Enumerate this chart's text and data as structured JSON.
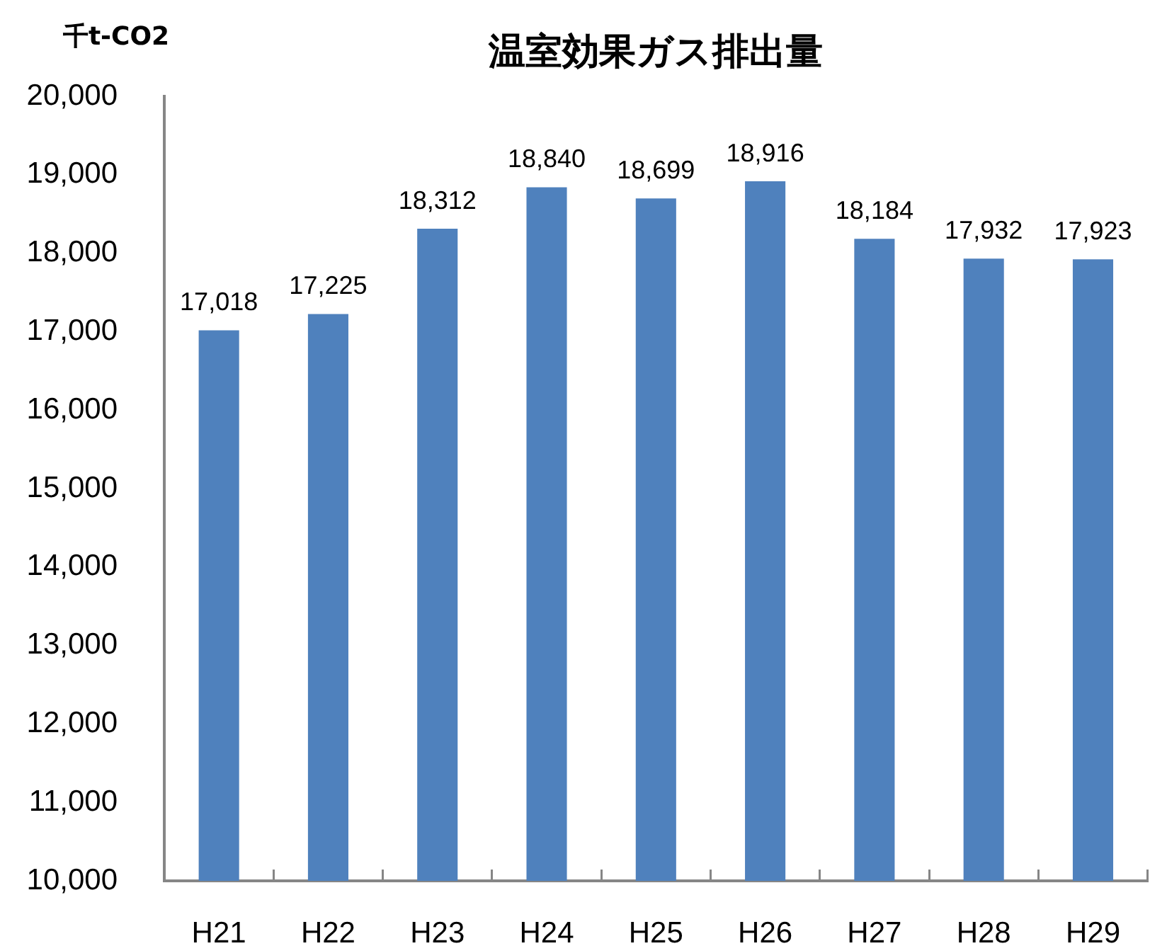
{
  "chart_data": {
    "type": "bar",
    "title": "温室効果ガス排出量",
    "ylabel": "千t-CO2",
    "categories": [
      "H21",
      "H22",
      "H23",
      "H24",
      "H25",
      "H26",
      "H27",
      "H28",
      "H29"
    ],
    "values": [
      17018,
      17225,
      18312,
      18840,
      18699,
      18916,
      18184,
      17932,
      17923
    ],
    "value_labels": [
      "17,018",
      "17,225",
      "18,312",
      "18,840",
      "18,699",
      "18,916",
      "18,184",
      "17,932",
      "17,923"
    ],
    "color": "#4f81bd",
    "ylim": [
      10000,
      20000
    ],
    "yticks": [
      {
        "value": 10000,
        "label": "10,000"
      },
      {
        "value": 11000,
        "label": "11,000"
      },
      {
        "value": 12000,
        "label": "12,000"
      },
      {
        "value": 13000,
        "label": "13,000"
      },
      {
        "value": 14000,
        "label": "14,000"
      },
      {
        "value": 15000,
        "label": "15,000"
      },
      {
        "value": 16000,
        "label": "16,000"
      },
      {
        "value": 17000,
        "label": "17,000"
      },
      {
        "value": 18000,
        "label": "18,000"
      },
      {
        "value": 19000,
        "label": "19,000"
      },
      {
        "value": 20000,
        "label": "20,000"
      }
    ],
    "grid": false,
    "legend": false
  }
}
